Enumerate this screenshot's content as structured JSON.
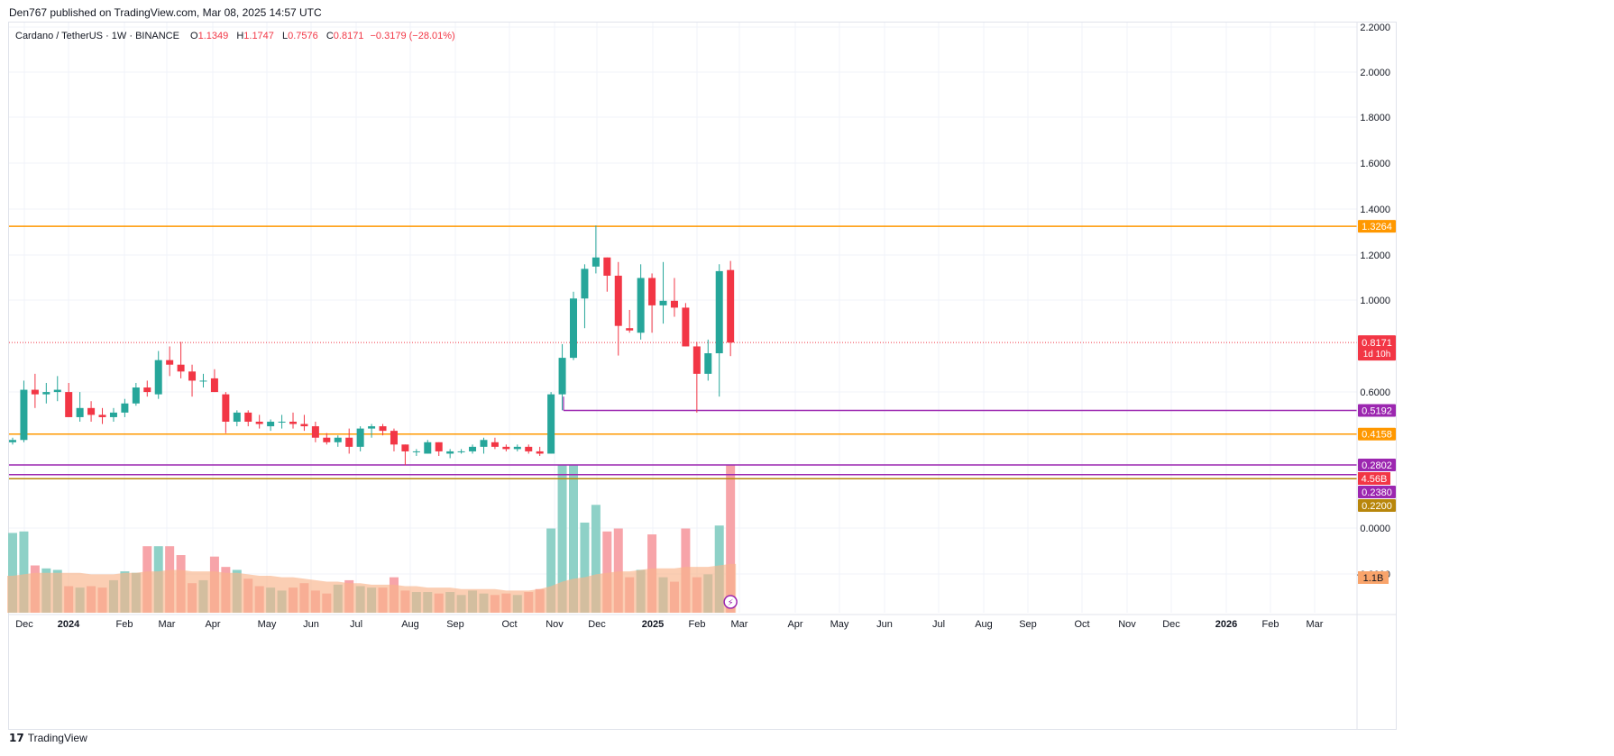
{
  "header": {
    "published_line": "Den767 published on TradingView.com, Mar 08, 2025 14:57 UTC"
  },
  "legend": {
    "symbol": "Cardano / TetherUS · 1W · BINANCE",
    "o_label": "O",
    "o_value": "1.1349",
    "h_label": "H",
    "h_value": "1.1747",
    "l_label": "L",
    "l_value": "0.7576",
    "c_label": "C",
    "c_value": "0.8171",
    "change": "−0.3179 (−28.01%)"
  },
  "footer": {
    "logo_text": "TradingView",
    "logo_glyph": "17"
  },
  "colors": {
    "up": "#26a69a",
    "down": "#f23645",
    "vol_up": "#8ed1c7",
    "vol_down": "#f7a4a9",
    "vol_ma": "#f9b48a",
    "orange": "#ff9800",
    "purple": "#9c27b0",
    "gold": "#b8860b",
    "grid": "#f0f3fa",
    "axis_text": "#131722"
  },
  "chart_data": {
    "type": "candlestick",
    "symbol": "Cardano / TetherUS",
    "interval": "1W",
    "exchange": "BINANCE",
    "ylim": [
      0.0,
      2.2
    ],
    "y_ticks": [
      "2.2000",
      "2.0000",
      "1.8000",
      "1.6000",
      "1.4000",
      "1.2000",
      "1.0000",
      "0.6000",
      "0.0000",
      "-0.2000"
    ],
    "x_ticks": [
      "Dec",
      "2024",
      "Feb",
      "Mar",
      "Apr",
      "May",
      "Jun",
      "Jul",
      "Aug",
      "Sep",
      "Oct",
      "Nov",
      "Dec",
      "2025",
      "Feb",
      "Mar",
      "Apr",
      "May",
      "Jun",
      "Jul",
      "Aug",
      "Sep",
      "Oct",
      "Nov",
      "Dec",
      "2026",
      "Feb",
      "Mar"
    ],
    "candles": [
      {
        "o": 0.38,
        "h": 0.4,
        "l": 0.37,
        "c": 0.39
      },
      {
        "o": 0.39,
        "h": 0.65,
        "l": 0.38,
        "c": 0.61
      },
      {
        "o": 0.61,
        "h": 0.68,
        "l": 0.53,
        "c": 0.59
      },
      {
        "o": 0.59,
        "h": 0.64,
        "l": 0.55,
        "c": 0.6
      },
      {
        "o": 0.6,
        "h": 0.67,
        "l": 0.56,
        "c": 0.61
      },
      {
        "o": 0.6,
        "h": 0.64,
        "l": 0.49,
        "c": 0.49
      },
      {
        "o": 0.49,
        "h": 0.6,
        "l": 0.47,
        "c": 0.53
      },
      {
        "o": 0.53,
        "h": 0.56,
        "l": 0.47,
        "c": 0.5
      },
      {
        "o": 0.5,
        "h": 0.53,
        "l": 0.46,
        "c": 0.49
      },
      {
        "o": 0.49,
        "h": 0.53,
        "l": 0.47,
        "c": 0.51
      },
      {
        "o": 0.51,
        "h": 0.57,
        "l": 0.49,
        "c": 0.55
      },
      {
        "o": 0.55,
        "h": 0.64,
        "l": 0.54,
        "c": 0.62
      },
      {
        "o": 0.62,
        "h": 0.65,
        "l": 0.58,
        "c": 0.6
      },
      {
        "o": 0.59,
        "h": 0.78,
        "l": 0.57,
        "c": 0.74
      },
      {
        "o": 0.74,
        "h": 0.8,
        "l": 0.67,
        "c": 0.72
      },
      {
        "o": 0.72,
        "h": 0.82,
        "l": 0.66,
        "c": 0.69
      },
      {
        "o": 0.69,
        "h": 0.72,
        "l": 0.58,
        "c": 0.65
      },
      {
        "o": 0.65,
        "h": 0.68,
        "l": 0.62,
        "c": 0.65
      },
      {
        "o": 0.66,
        "h": 0.7,
        "l": 0.6,
        "c": 0.6
      },
      {
        "o": 0.59,
        "h": 0.6,
        "l": 0.42,
        "c": 0.47
      },
      {
        "o": 0.47,
        "h": 0.52,
        "l": 0.45,
        "c": 0.51
      },
      {
        "o": 0.51,
        "h": 0.52,
        "l": 0.45,
        "c": 0.47
      },
      {
        "o": 0.47,
        "h": 0.5,
        "l": 0.44,
        "c": 0.46
      },
      {
        "o": 0.45,
        "h": 0.48,
        "l": 0.43,
        "c": 0.47
      },
      {
        "o": 0.47,
        "h": 0.5,
        "l": 0.44,
        "c": 0.47
      },
      {
        "o": 0.47,
        "h": 0.51,
        "l": 0.44,
        "c": 0.46
      },
      {
        "o": 0.46,
        "h": 0.5,
        "l": 0.43,
        "c": 0.45
      },
      {
        "o": 0.45,
        "h": 0.47,
        "l": 0.38,
        "c": 0.4
      },
      {
        "o": 0.4,
        "h": 0.42,
        "l": 0.37,
        "c": 0.38
      },
      {
        "o": 0.38,
        "h": 0.41,
        "l": 0.36,
        "c": 0.4
      },
      {
        "o": 0.4,
        "h": 0.44,
        "l": 0.33,
        "c": 0.36
      },
      {
        "o": 0.36,
        "h": 0.45,
        "l": 0.34,
        "c": 0.44
      },
      {
        "o": 0.44,
        "h": 0.46,
        "l": 0.4,
        "c": 0.45
      },
      {
        "o": 0.45,
        "h": 0.46,
        "l": 0.41,
        "c": 0.43
      },
      {
        "o": 0.43,
        "h": 0.44,
        "l": 0.34,
        "c": 0.37
      },
      {
        "o": 0.37,
        "h": 0.37,
        "l": 0.28,
        "c": 0.34
      },
      {
        "o": 0.34,
        "h": 0.35,
        "l": 0.32,
        "c": 0.34
      },
      {
        "o": 0.33,
        "h": 0.39,
        "l": 0.33,
        "c": 0.38
      },
      {
        "o": 0.38,
        "h": 0.38,
        "l": 0.32,
        "c": 0.34
      },
      {
        "o": 0.33,
        "h": 0.35,
        "l": 0.31,
        "c": 0.34
      },
      {
        "o": 0.34,
        "h": 0.35,
        "l": 0.33,
        "c": 0.34
      },
      {
        "o": 0.34,
        "h": 0.37,
        "l": 0.33,
        "c": 0.36
      },
      {
        "o": 0.36,
        "h": 0.4,
        "l": 0.33,
        "c": 0.39
      },
      {
        "o": 0.38,
        "h": 0.4,
        "l": 0.35,
        "c": 0.36
      },
      {
        "o": 0.36,
        "h": 0.37,
        "l": 0.34,
        "c": 0.35
      },
      {
        "o": 0.35,
        "h": 0.37,
        "l": 0.34,
        "c": 0.36
      },
      {
        "o": 0.36,
        "h": 0.37,
        "l": 0.33,
        "c": 0.34
      },
      {
        "o": 0.34,
        "h": 0.36,
        "l": 0.32,
        "c": 0.33
      },
      {
        "o": 0.33,
        "h": 0.6,
        "l": 0.33,
        "c": 0.59
      },
      {
        "o": 0.59,
        "h": 0.81,
        "l": 0.52,
        "c": 0.75
      },
      {
        "o": 0.75,
        "h": 1.04,
        "l": 0.74,
        "c": 1.01
      },
      {
        "o": 1.01,
        "h": 1.16,
        "l": 0.88,
        "c": 1.14
      },
      {
        "o": 1.15,
        "h": 1.33,
        "l": 1.12,
        "c": 1.19
      },
      {
        "o": 1.19,
        "h": 1.19,
        "l": 1.04,
        "c": 1.11
      },
      {
        "o": 1.11,
        "h": 1.17,
        "l": 0.76,
        "c": 0.89
      },
      {
        "o": 0.88,
        "h": 0.96,
        "l": 0.86,
        "c": 0.87
      },
      {
        "o": 0.86,
        "h": 1.16,
        "l": 0.83,
        "c": 1.1
      },
      {
        "o": 1.1,
        "h": 1.12,
        "l": 0.86,
        "c": 0.98
      },
      {
        "o": 0.98,
        "h": 1.17,
        "l": 0.9,
        "c": 1.0
      },
      {
        "o": 1.0,
        "h": 1.1,
        "l": 0.93,
        "c": 0.97
      },
      {
        "o": 0.97,
        "h": 0.99,
        "l": 0.8,
        "c": 0.8
      },
      {
        "o": 0.8,
        "h": 0.82,
        "l": 0.51,
        "c": 0.68
      },
      {
        "o": 0.68,
        "h": 0.83,
        "l": 0.65,
        "c": 0.77
      },
      {
        "o": 0.77,
        "h": 1.16,
        "l": 0.58,
        "c": 1.13
      },
      {
        "o": 1.1349,
        "h": 1.1747,
        "l": 0.7576,
        "c": 0.8171
      }
    ],
    "volume_pct": [
      0.54,
      0.55,
      0.32,
      0.3,
      0.29,
      0.18,
      0.17,
      0.18,
      0.17,
      0.22,
      0.28,
      0.27,
      0.45,
      0.45,
      0.45,
      0.39,
      0.2,
      0.22,
      0.38,
      0.31,
      0.29,
      0.23,
      0.18,
      0.17,
      0.15,
      0.17,
      0.2,
      0.15,
      0.13,
      0.19,
      0.22,
      0.18,
      0.17,
      0.17,
      0.24,
      0.15,
      0.14,
      0.14,
      0.13,
      0.14,
      0.12,
      0.15,
      0.13,
      0.12,
      0.13,
      0.12,
      0.14,
      0.16,
      0.57,
      1.0,
      1.0,
      0.61,
      0.73,
      0.55,
      0.57,
      0.24,
      0.29,
      0.53,
      0.24,
      0.21,
      0.57,
      0.24,
      0.26,
      0.59,
      1.0
    ],
    "volume_ma_pct": [
      0.25,
      0.26,
      0.27,
      0.27,
      0.27,
      0.27,
      0.27,
      0.26,
      0.26,
      0.26,
      0.27,
      0.27,
      0.28,
      0.28,
      0.29,
      0.29,
      0.28,
      0.28,
      0.28,
      0.27,
      0.27,
      0.26,
      0.25,
      0.25,
      0.24,
      0.24,
      0.23,
      0.22,
      0.21,
      0.21,
      0.2,
      0.2,
      0.19,
      0.19,
      0.19,
      0.18,
      0.18,
      0.17,
      0.17,
      0.17,
      0.16,
      0.16,
      0.16,
      0.16,
      0.15,
      0.15,
      0.15,
      0.16,
      0.18,
      0.21,
      0.23,
      0.24,
      0.26,
      0.27,
      0.28,
      0.28,
      0.29,
      0.3,
      0.3,
      0.3,
      0.31,
      0.31,
      0.31,
      0.32,
      0.33
    ],
    "levels": [
      {
        "price": 1.3264,
        "label": "1.3264",
        "color": "#ff9800"
      },
      {
        "price": 0.5192,
        "label": "0.5192",
        "color": "#9c27b0"
      },
      {
        "price": 0.4158,
        "label": "0.4158",
        "color": "#ff9800"
      },
      {
        "price": 0.2802,
        "label": "0.2802",
        "color": "#9c27b0"
      },
      {
        "price": 0.238,
        "label": "0.2380",
        "color": "#9c27b0"
      },
      {
        "price": 0.22,
        "label": "0.2200",
        "color": "#b8860b"
      }
    ],
    "last_price": {
      "price": 0.8171,
      "label": "0.8171",
      "countdown": "1d 10h"
    },
    "volume_labels": [
      {
        "label": "4.56B",
        "color": "#f23645"
      },
      {
        "label": "1.1B",
        "color": "#f9a46b"
      }
    ]
  }
}
